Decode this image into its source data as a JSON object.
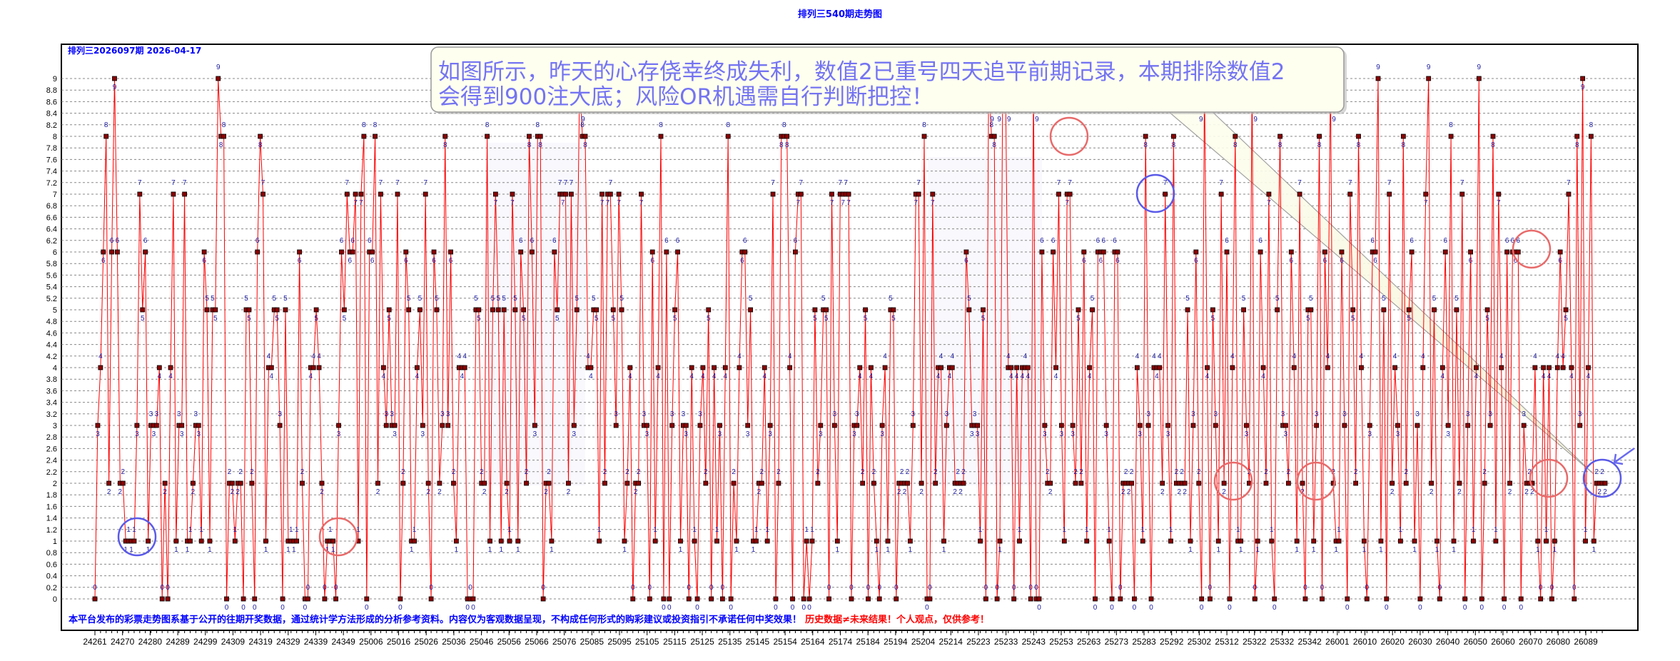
{
  "chart_data": {
    "type": "line",
    "title": "排列三540期走势图",
    "subtitle": "排列三2026097期   2026-04-17",
    "ylim": [
      0,
      9
    ],
    "ytick_step": 0.2,
    "grid": true,
    "x_tick_labels": [
      "24261",
      "24270",
      "24280",
      "24289",
      "24299",
      "24309",
      "24319",
      "24329",
      "24339",
      "24349",
      "25006",
      "25016",
      "25026",
      "25036",
      "25046",
      "25056",
      "25066",
      "25076",
      "25085",
      "25095",
      "25105",
      "25115",
      "25125",
      "25135",
      "25145",
      "25154",
      "25164",
      "25174",
      "25184",
      "25194",
      "25204",
      "25214",
      "25223",
      "25233",
      "25243",
      "25253",
      "25263",
      "25273",
      "25283",
      "25292",
      "25302",
      "25312",
      "25322",
      "25332",
      "25342",
      "26001",
      "26010",
      "26020",
      "26030",
      "26040",
      "26050",
      "26060",
      "26070",
      "26080",
      "26089"
    ],
    "values": [
      0,
      3,
      4,
      6,
      8,
      2,
      6,
      9,
      6,
      2,
      2,
      1,
      1,
      1,
      1,
      3,
      7,
      5,
      6,
      1,
      3,
      3,
      3,
      4,
      0,
      2,
      0,
      4,
      7,
      1,
      3,
      3,
      7,
      1,
      1,
      2,
      3,
      3,
      1,
      6,
      5,
      1,
      5,
      5,
      9,
      8,
      8,
      0,
      2,
      2,
      1,
      2,
      2,
      0,
      5,
      5,
      2,
      0,
      6,
      8,
      7,
      1,
      4,
      4,
      5,
      5,
      3,
      0,
      5,
      1,
      1,
      1,
      1,
      6,
      2,
      0,
      0,
      4,
      4,
      5,
      4,
      2,
      0,
      1,
      1,
      1,
      0,
      3,
      6,
      5,
      7,
      6,
      6,
      7,
      1,
      7,
      8,
      0,
      6,
      6,
      8,
      2,
      7,
      4,
      3,
      5,
      3,
      3,
      7,
      0,
      2,
      6,
      5,
      1,
      1,
      4,
      5,
      3,
      7,
      2,
      0,
      6,
      5,
      2,
      3,
      8,
      3,
      6,
      2,
      1,
      4,
      4,
      4,
      0,
      0,
      0,
      5,
      5,
      2,
      2,
      8,
      1,
      5,
      7,
      5,
      1,
      5,
      2,
      1,
      7,
      5,
      1,
      6,
      5,
      2,
      8,
      6,
      3,
      8,
      8,
      0,
      2,
      2,
      1,
      6,
      5,
      7,
      7,
      7,
      2,
      7,
      3,
      5,
      9,
      8,
      8,
      4,
      4,
      5,
      5,
      1,
      7,
      2,
      7,
      7,
      5,
      3,
      7,
      5,
      1,
      2,
      4,
      0,
      2,
      2,
      7,
      3,
      3,
      0,
      6,
      1,
      4,
      8,
      0,
      6,
      0,
      3,
      5,
      6,
      1,
      3,
      3,
      0,
      4,
      1,
      0,
      3,
      4,
      2,
      5,
      0,
      4,
      1,
      3,
      0,
      4,
      8,
      0,
      2,
      1,
      4,
      6,
      6,
      3,
      5,
      1,
      1,
      2,
      2,
      4,
      1,
      3,
      7,
      0,
      2,
      8,
      8,
      8,
      4,
      0,
      6,
      7,
      7,
      0,
      1,
      0,
      1,
      5,
      2,
      3,
      5,
      5,
      0,
      7,
      3,
      1,
      7,
      7,
      7,
      7,
      0,
      3,
      3,
      4,
      2,
      5,
      0,
      4,
      2,
      1,
      0,
      3,
      4,
      1,
      5,
      5,
      0,
      2,
      2,
      2,
      2,
      1,
      3,
      7,
      7,
      2,
      8,
      0,
      0,
      7,
      2,
      4,
      4,
      1,
      3,
      4,
      4,
      2,
      2,
      2,
      2,
      6,
      5,
      3,
      3,
      3,
      1,
      5,
      0,
      9,
      8,
      8,
      0,
      1,
      9,
      9,
      4,
      4,
      0,
      4,
      1,
      4,
      4,
      4,
      0,
      9,
      0,
      0,
      6,
      3,
      2,
      2,
      6,
      4,
      7,
      3,
      1,
      7,
      7,
      3,
      2,
      5,
      2,
      6,
      1,
      4,
      5,
      0,
      6,
      6,
      6,
      3,
      1,
      0,
      6,
      6,
      0,
      2,
      2,
      2,
      2,
      0,
      4,
      3,
      1,
      8,
      3,
      0,
      4,
      4,
      4,
      2,
      7,
      3,
      1,
      8,
      2,
      2,
      2,
      2,
      5,
      1,
      3,
      6,
      2,
      0,
      9,
      4,
      0,
      5,
      3,
      1,
      7,
      2,
      6,
      0,
      4,
      8,
      1,
      1,
      5,
      3,
      2,
      9,
      0,
      1,
      6,
      4,
      2,
      7,
      1,
      0,
      5,
      8,
      3,
      3,
      2,
      6,
      4,
      1,
      7,
      2,
      0,
      5,
      5,
      1,
      3,
      8,
      0,
      6,
      4,
      9,
      2,
      1,
      1,
      6,
      3,
      0,
      7,
      5,
      2,
      8,
      4,
      1,
      0,
      3,
      6,
      6,
      9,
      1,
      5,
      0,
      7,
      2,
      4,
      3,
      1,
      8,
      2,
      5,
      6,
      1,
      3,
      0,
      4,
      7,
      9,
      2,
      5,
      1,
      0,
      4,
      6,
      3,
      8,
      1,
      5,
      2,
      7,
      0,
      3,
      6,
      1,
      4,
      9,
      0,
      2,
      5,
      3,
      8,
      1,
      7,
      4,
      0,
      6,
      2,
      6,
      6,
      6,
      0,
      3,
      2,
      2,
      2,
      4,
      1,
      0,
      4,
      1,
      4,
      0,
      1,
      4,
      6,
      4,
      5,
      7,
      4,
      0,
      8,
      3,
      9,
      1,
      4,
      8,
      1,
      2,
      2,
      2,
      2
    ],
    "colors": {
      "line": "#ff0000",
      "marker": "#8b0000",
      "point_label": "#1a1aa0",
      "grid": "#888888",
      "highlight_red": "#e85050",
      "highlight_blue": "#5050e8"
    }
  },
  "callout": {
    "line1": "如图所示，昨天的心存侥幸终成失利，数值2已重号四天追平前期记录，本期排除数值2",
    "line2": "会得到900注大底；风险OR机遇需自行判断把控！"
  },
  "footer": {
    "disclaimer": "本平台发布的彩票走势图系基于公开的往期开奖数据，通过统计学方法形成的分析参考资料。内容仅为客观数据呈现，不构成任何形式的购彩建议或投资指引不承诺任何中奖效果！",
    "warning": "历史数据≠未来结果！个人观点，仅供参考！"
  }
}
